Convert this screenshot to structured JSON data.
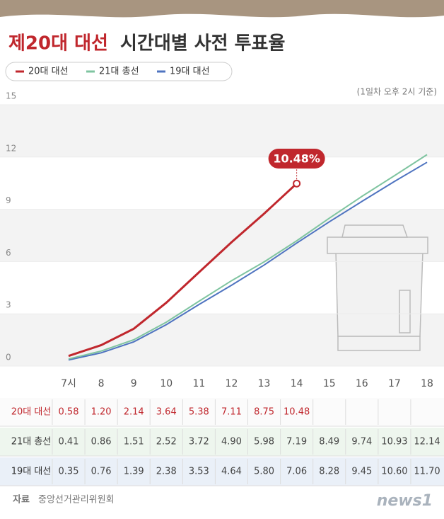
{
  "chart_data": {
    "type": "line",
    "title": {
      "highlight": "제20대 대선",
      "rest": "시간대별 사전 투표율"
    },
    "subtitle": "(1일차 오후 2시 기준)",
    "annotation": "10.48%",
    "categories": [
      "7시",
      "8",
      "9",
      "10",
      "11",
      "12",
      "13",
      "14",
      "15",
      "16",
      "17",
      "18"
    ],
    "series": [
      {
        "name": "20대 대선",
        "color": "#c0272d",
        "values": [
          0.58,
          1.2,
          2.14,
          3.64,
          5.38,
          7.11,
          8.75,
          10.48,
          null,
          null,
          null,
          null
        ],
        "value_labels": [
          "0.58",
          "1.20",
          "2.14",
          "3.64",
          "5.38",
          "7.11",
          "8.75",
          "10.48",
          null,
          null,
          null,
          null
        ]
      },
      {
        "name": "21대 총선",
        "color": "#7fc4a0",
        "values": [
          0.41,
          0.86,
          1.51,
          2.52,
          3.72,
          4.9,
          5.98,
          7.19,
          8.49,
          9.74,
          10.93,
          12.14
        ],
        "value_labels": [
          "0.41",
          "0.86",
          "1.51",
          "2.52",
          "3.72",
          "4.90",
          "5.98",
          "7.19",
          "8.49",
          "9.74",
          "10.93",
          "12.14"
        ]
      },
      {
        "name": "19대 대선",
        "color": "#4f74c0",
        "values": [
          0.35,
          0.76,
          1.39,
          2.38,
          3.53,
          4.64,
          5.8,
          7.06,
          8.28,
          9.45,
          10.6,
          11.7
        ],
        "value_labels": [
          "0.35",
          "0.76",
          "1.39",
          "2.38",
          "3.53",
          "4.64",
          "5.80",
          "7.06",
          "8.28",
          "9.45",
          "10.60",
          "11.70"
        ]
      }
    ],
    "ylim": [
      0,
      15
    ],
    "yticks": [
      0,
      3,
      6,
      9,
      12,
      15
    ],
    "source_label": "자료",
    "source": "중앙선거관리위원회",
    "brand": "news1"
  }
}
